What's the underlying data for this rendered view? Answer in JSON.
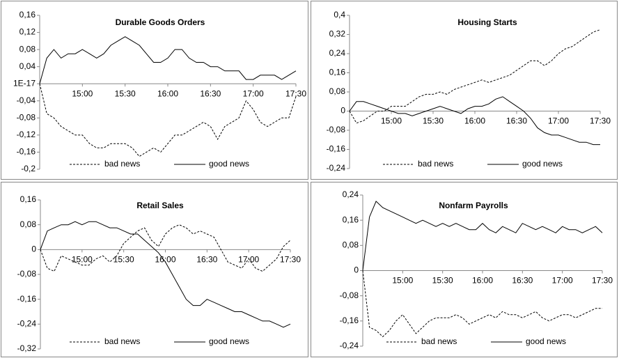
{
  "chart_data": [
    {
      "type": "line",
      "title": "Durable Goods Orders",
      "categories": [
        null,
        null,
        null,
        null,
        null,
        null,
        "15:00",
        null,
        null,
        null,
        null,
        null,
        "15:30",
        null,
        null,
        null,
        null,
        null,
        "16:00",
        null,
        null,
        null,
        null,
        null,
        "16:30",
        null,
        null,
        null,
        null,
        null,
        "17:00",
        null,
        null,
        null,
        null,
        null,
        "17:30"
      ],
      "ylim": [
        -0.2,
        0.16
      ],
      "yticks": [
        {
          "value": 0.16,
          "label": "0,16"
        },
        {
          "value": 0.12,
          "label": "0,12"
        },
        {
          "value": 0.08,
          "label": "0,08"
        },
        {
          "value": 0.04,
          "label": "0,04"
        },
        {
          "value": 0,
          "label": "1E-17"
        },
        {
          "value": -0.04,
          "label": "-0,04"
        },
        {
          "value": -0.08,
          "label": "-0,08"
        },
        {
          "value": -0.12,
          "label": "-0,12"
        },
        {
          "value": -0.16,
          "label": "-0,16"
        },
        {
          "value": -0.2,
          "label": "-0,2"
        }
      ],
      "series": [
        {
          "name": "bad news",
          "color": "#000000",
          "line_style": "dashed",
          "values": [
            0,
            -0.07,
            -0.08,
            -0.1,
            -0.11,
            -0.12,
            -0.12,
            -0.14,
            -0.15,
            -0.15,
            -0.14,
            -0.14,
            -0.14,
            -0.15,
            -0.17,
            -0.16,
            -0.15,
            -0.16,
            -0.14,
            -0.12,
            -0.12,
            -0.11,
            -0.1,
            -0.09,
            -0.1,
            -0.13,
            -0.1,
            -0.09,
            -0.08,
            -0.04,
            -0.06,
            -0.09,
            -0.1,
            -0.09,
            -0.08,
            -0.08,
            -0.03
          ]
        },
        {
          "name": "good news",
          "color": "#000000",
          "line_style": "solid",
          "values": [
            0,
            0.06,
            0.08,
            0.06,
            0.07,
            0.07,
            0.08,
            0.07,
            0.06,
            0.07,
            0.09,
            0.1,
            0.11,
            0.1,
            0.09,
            0.07,
            0.05,
            0.05,
            0.06,
            0.08,
            0.08,
            0.06,
            0.05,
            0.05,
            0.04,
            0.04,
            0.03,
            0.03,
            0.03,
            0.01,
            0.01,
            0.02,
            0.02,
            0.02,
            0.01,
            0.02,
            0.03
          ]
        }
      ]
    },
    {
      "type": "line",
      "title": "Housing Starts",
      "categories": [
        null,
        null,
        null,
        null,
        null,
        null,
        "15:00",
        null,
        null,
        null,
        null,
        null,
        "15:30",
        null,
        null,
        null,
        null,
        null,
        "16:00",
        null,
        null,
        null,
        null,
        null,
        "16:30",
        null,
        null,
        null,
        null,
        null,
        "17:00",
        null,
        null,
        null,
        null,
        null,
        "17:30"
      ],
      "ylim": [
        -0.24,
        0.4
      ],
      "yticks": [
        {
          "value": 0.4,
          "label": "0,4"
        },
        {
          "value": 0.32,
          "label": "0,32"
        },
        {
          "value": 0.24,
          "label": "0,24"
        },
        {
          "value": 0.16,
          "label": "0,16"
        },
        {
          "value": 0.08,
          "label": "0,08"
        },
        0,
        {
          "value": -0.08,
          "label": "-0,08"
        },
        {
          "value": -0.16,
          "label": "-0,16"
        },
        {
          "value": -0.24,
          "label": "-0,24"
        }
      ],
      "series": [
        {
          "name": "bad news",
          "color": "#000000",
          "line_style": "dashed",
          "values": [
            0,
            -0.05,
            -0.04,
            -0.02,
            0,
            0,
            0.02,
            0.02,
            0.02,
            0.04,
            0.06,
            0.07,
            0.07,
            0.08,
            0.07,
            0.09,
            0.1,
            0.11,
            0.12,
            0.13,
            0.12,
            0.13,
            0.14,
            0.15,
            0.17,
            0.19,
            0.21,
            0.21,
            0.19,
            0.21,
            0.24,
            0.26,
            0.27,
            0.29,
            0.31,
            0.33,
            0.34
          ]
        },
        {
          "name": "good news",
          "color": "#000000",
          "line_style": "solid",
          "values": [
            0,
            0.04,
            0.04,
            0.03,
            0.02,
            0.01,
            0,
            -0.01,
            -0.01,
            -0.02,
            -0.01,
            0,
            0.01,
            0.02,
            0.01,
            0,
            -0.01,
            0.01,
            0.02,
            0.02,
            0.03,
            0.05,
            0.06,
            0.04,
            0.02,
            0,
            -0.03,
            -0.07,
            -0.09,
            -0.1,
            -0.1,
            -0.11,
            -0.12,
            -0.13,
            -0.13,
            -0.14,
            -0.14
          ]
        }
      ]
    },
    {
      "type": "line",
      "title": "Retail Sales",
      "categories": [
        null,
        null,
        null,
        null,
        null,
        null,
        "15:00",
        null,
        null,
        null,
        null,
        null,
        "15:30",
        null,
        null,
        null,
        null,
        null,
        "16:00",
        null,
        null,
        null,
        null,
        null,
        "16:30",
        null,
        null,
        null,
        null,
        null,
        "17:00",
        null,
        null,
        null,
        null,
        null,
        "17:30"
      ],
      "ylim": [
        -0.32,
        0.16
      ],
      "yticks": [
        {
          "value": 0.16,
          "label": "0,16"
        },
        {
          "value": 0.08,
          "label": "0,08"
        },
        0,
        {
          "value": -0.08,
          "label": "-0,08"
        },
        {
          "value": -0.16,
          "label": "-0,16"
        },
        {
          "value": -0.24,
          "label": "-0,24"
        },
        {
          "value": -0.32,
          "label": "-0,32"
        }
      ],
      "series": [
        {
          "name": "bad news",
          "color": "#000000",
          "line_style": "dashed",
          "values": [
            0,
            -0.06,
            -0.07,
            -0.02,
            -0.03,
            -0.04,
            -0.05,
            -0.05,
            -0.03,
            -0.02,
            -0.04,
            -0.02,
            0.02,
            0.04,
            0.06,
            0.07,
            0.03,
            0.01,
            0.05,
            0.07,
            0.08,
            0.07,
            0.05,
            0.06,
            0.05,
            0.04,
            0,
            -0.04,
            -0.05,
            -0.06,
            -0.03,
            -0.06,
            -0.07,
            -0.05,
            -0.03,
            0.01,
            0.03
          ]
        },
        {
          "name": "good news",
          "color": "#000000",
          "line_style": "solid",
          "values": [
            0,
            0.06,
            0.07,
            0.08,
            0.08,
            0.09,
            0.08,
            0.09,
            0.09,
            0.08,
            0.07,
            0.07,
            0.06,
            0.05,
            0.05,
            0.03,
            0.01,
            -0.01,
            -0.04,
            -0.08,
            -0.12,
            -0.16,
            -0.18,
            -0.18,
            -0.16,
            -0.17,
            -0.18,
            -0.19,
            -0.2,
            -0.2,
            -0.21,
            -0.22,
            -0.23,
            -0.23,
            -0.24,
            -0.25,
            -0.24
          ]
        }
      ]
    },
    {
      "type": "line",
      "title": "Nonfarm Payrolls",
      "categories": [
        null,
        null,
        null,
        null,
        null,
        null,
        "15:00",
        null,
        null,
        null,
        null,
        null,
        "15:30",
        null,
        null,
        null,
        null,
        null,
        "16:00",
        null,
        null,
        null,
        null,
        null,
        "16:30",
        null,
        null,
        null,
        null,
        null,
        "17:00",
        null,
        null,
        null,
        null,
        null,
        "17:30"
      ],
      "ylim": [
        -0.24,
        0.24
      ],
      "yticks": [
        {
          "value": 0.24,
          "label": "0,24"
        },
        {
          "value": 0.16,
          "label": "0,16"
        },
        {
          "value": 0.08,
          "label": "0,08"
        },
        0,
        {
          "value": -0.08,
          "label": "-0,08"
        },
        {
          "value": -0.16,
          "label": "-0,16"
        },
        {
          "value": -0.24,
          "label": "-0,24"
        }
      ],
      "series": [
        {
          "name": "bad news",
          "color": "#000000",
          "line_style": "dashed",
          "values": [
            0,
            -0.18,
            -0.19,
            -0.21,
            -0.19,
            -0.16,
            -0.14,
            -0.17,
            -0.2,
            -0.18,
            -0.16,
            -0.15,
            -0.15,
            -0.15,
            -0.14,
            -0.15,
            -0.17,
            -0.16,
            -0.15,
            -0.14,
            -0.15,
            -0.13,
            -0.14,
            -0.14,
            -0.15,
            -0.14,
            -0.13,
            -0.15,
            -0.16,
            -0.15,
            -0.14,
            -0.14,
            -0.15,
            -0.14,
            -0.13,
            -0.12,
            -0.12
          ]
        },
        {
          "name": "good news",
          "color": "#000000",
          "line_style": "solid",
          "values": [
            0,
            0.17,
            0.22,
            0.2,
            0.19,
            0.18,
            0.17,
            0.16,
            0.15,
            0.16,
            0.15,
            0.14,
            0.15,
            0.14,
            0.15,
            0.14,
            0.13,
            0.13,
            0.15,
            0.13,
            0.12,
            0.14,
            0.13,
            0.12,
            0.15,
            0.14,
            0.13,
            0.14,
            0.13,
            0.12,
            0.14,
            0.13,
            0.13,
            0.12,
            0.13,
            0.14,
            0.12
          ]
        }
      ]
    }
  ]
}
